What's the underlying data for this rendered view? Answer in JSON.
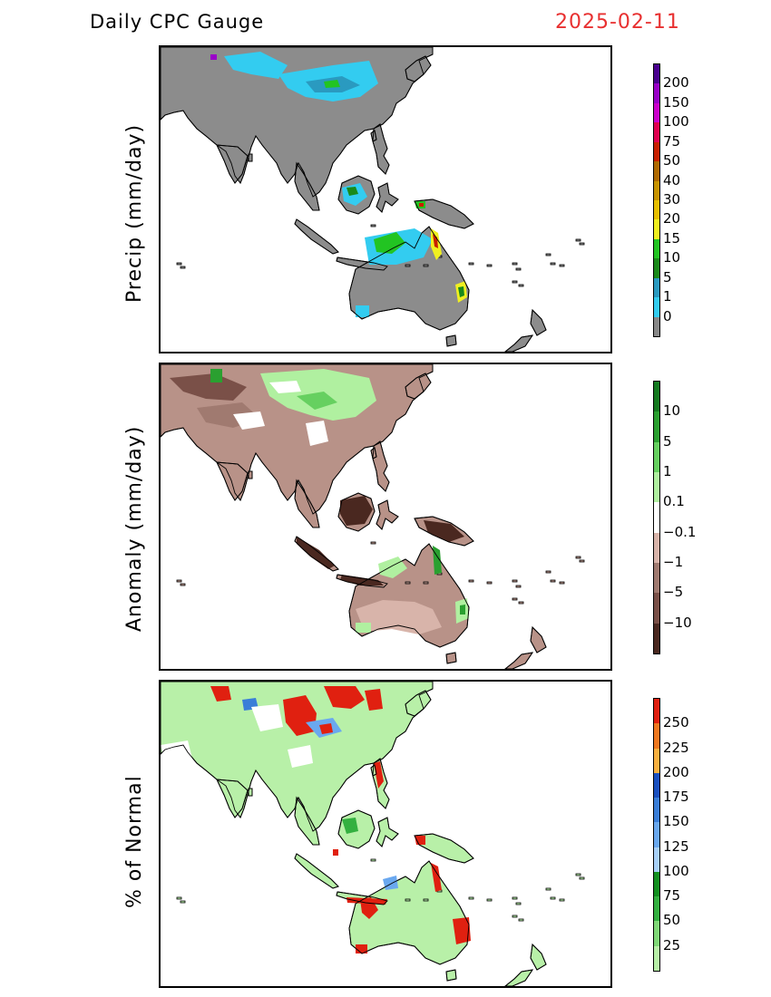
{
  "header": {
    "title": "Daily CPC Gauge",
    "date": "2025-02-11"
  },
  "panels": [
    {
      "id": "precip",
      "ylabel": "Precip (mm/day)",
      "land_color": "#8c8c8c",
      "colorbar": {
        "colors": [
          "#888888",
          "#33ccf0",
          "#2a9ac0",
          "#1a8a1a",
          "#22c422",
          "#f0f020",
          "#e8c000",
          "#c89400",
          "#b06a00",
          "#c82000",
          "#e00050",
          "#cc00cc",
          "#9a00c8",
          "#4a0090"
        ],
        "labels": [
          "0",
          "1",
          "5",
          "10",
          "15",
          "20",
          "30",
          "40",
          "50",
          "75",
          "100",
          "150",
          "200"
        ]
      }
    },
    {
      "id": "anomaly",
      "ylabel": "Anomaly (mm/day)",
      "land_color": "#b89288",
      "colorbar": {
        "colors": [
          "#4a2820",
          "#7a5048",
          "#a07a70",
          "#d8b4aa",
          "#ffffff",
          "#b0f0a0",
          "#66d060",
          "#2aa030",
          "#147a20"
        ],
        "labels": [
          "−10",
          "−5",
          "−1",
          "−0.1",
          "0.1",
          "1",
          "5",
          "10"
        ]
      }
    },
    {
      "id": "percent",
      "ylabel": "% of Normal",
      "land_color": "#b8f0a8",
      "colorbar": {
        "colors": [
          "#b8f0a8",
          "#80d878",
          "#33b040",
          "#129020",
          "#a8d0f8",
          "#6aa8ef",
          "#3a7ed8",
          "#1a50c0",
          "#f8b040",
          "#f07820",
          "#e02010"
        ],
        "labels": [
          "25",
          "50",
          "75",
          "100",
          "125",
          "150",
          "175",
          "200",
          "225",
          "250"
        ]
      }
    }
  ]
}
